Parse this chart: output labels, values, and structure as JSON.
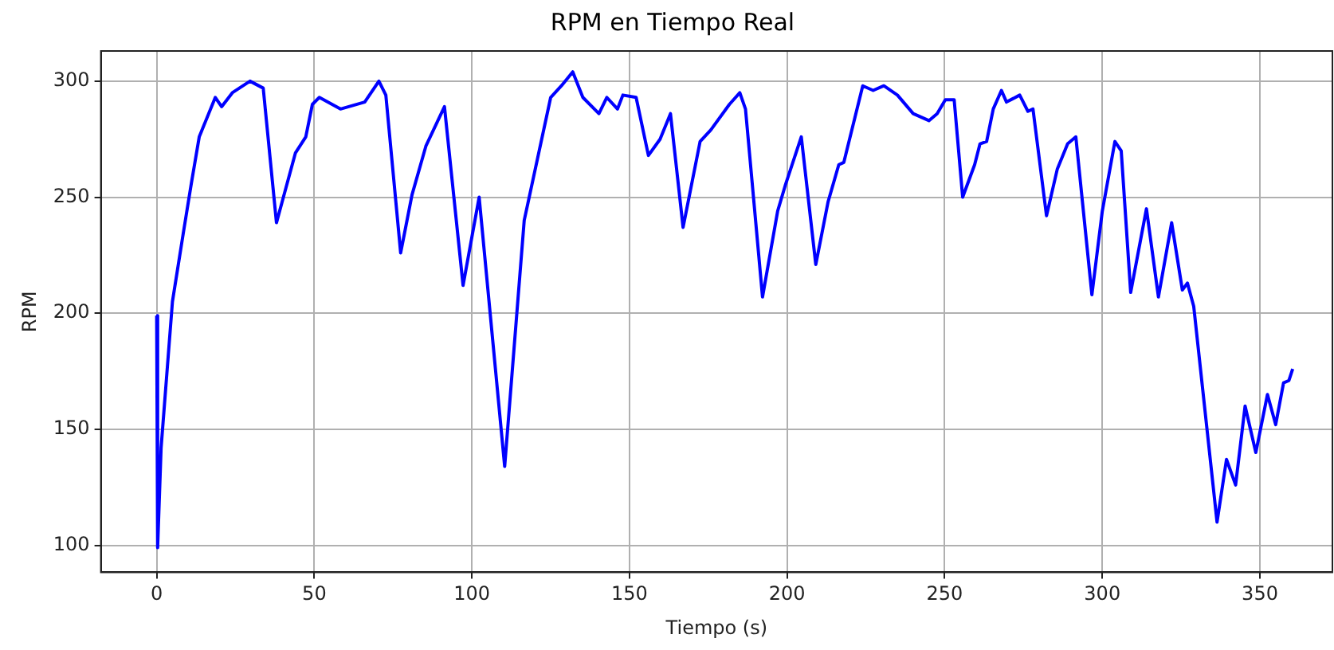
{
  "chart_data": {
    "type": "line",
    "title": "RPM en Tiempo Real",
    "xlabel": "Tiempo (s)",
    "ylabel": "RPM",
    "x": [
      0,
      0.3,
      1.4,
      5,
      8.5,
      11,
      13.5,
      18.6,
      20.6,
      24,
      29.6,
      33.8,
      38,
      44,
      47.3,
      49.4,
      51.6,
      58.3,
      66,
      70.5,
      72.7,
      77.4,
      81,
      85.4,
      91.3,
      97.2,
      102.3,
      110.4,
      116.6,
      125,
      128.4,
      132,
      135.2,
      140.3,
      142.8,
      146.2,
      147.9,
      152.1,
      156,
      159.7,
      163,
      167,
      172.4,
      175.8,
      181.7,
      185,
      186.8,
      192.2,
      197,
      199.4,
      204.5,
      209.1,
      213,
      216.4,
      218,
      224,
      227.3,
      230.7,
      235,
      240,
      245,
      247.6,
      250.2,
      253,
      255.7,
      259.5,
      261.2,
      263.3,
      265.4,
      268,
      269.6,
      273.8,
      276.4,
      278,
      282.3,
      285.7,
      289,
      291.6,
      296.7,
      300,
      304,
      306,
      309,
      314,
      317.8,
      322,
      325.4,
      327,
      329,
      336.4,
      339.4,
      342.3,
      345.3,
      348.7,
      352.4,
      355,
      357.5,
      359.2,
      360.4
    ],
    "values": [
      199,
      99,
      142,
      205,
      235,
      256,
      276,
      293,
      289,
      295,
      300,
      297,
      239,
      269,
      276,
      290,
      293,
      288,
      291,
      300,
      294,
      226,
      251,
      272,
      289,
      212,
      250,
      134,
      240,
      293,
      298,
      304,
      293,
      286,
      293,
      288,
      294,
      293,
      268,
      275,
      286,
      237,
      274,
      279,
      290,
      295,
      288,
      207,
      244,
      255,
      276,
      221,
      248,
      264,
      265,
      298,
      296,
      298,
      294,
      286,
      283,
      286,
      292,
      292,
      250,
      264,
      273,
      274,
      288,
      296,
      291,
      294,
      287,
      288,
      242,
      262,
      273,
      276,
      208,
      244,
      274,
      270,
      209,
      245,
      207,
      239,
      210,
      213,
      203,
      110,
      137,
      126,
      160,
      140,
      165,
      152,
      170,
      171,
      176
    ],
    "color": "#0000ff",
    "xlim": [
      -17.7,
      373
    ],
    "ylim": [
      88.4,
      313
    ],
    "xticks": [
      0,
      50,
      100,
      150,
      200,
      250,
      300,
      350
    ],
    "yticks": [
      100,
      150,
      200,
      250,
      300
    ],
    "grid": true,
    "line_style": "solid",
    "marker": "none"
  }
}
